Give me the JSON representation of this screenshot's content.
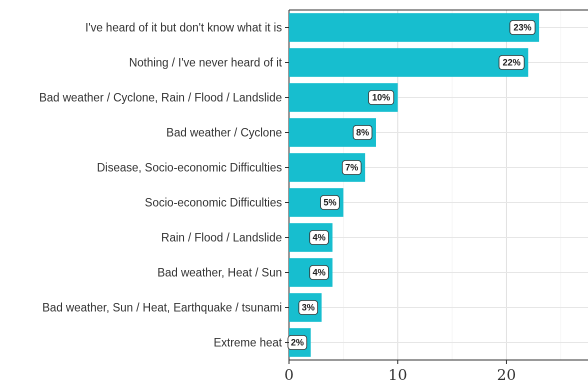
{
  "chart_data": {
    "type": "bar",
    "orientation": "horizontal",
    "categories": [
      "I've heard of it but don't know what it is",
      "Nothing / I've never heard of it",
      "Bad weather / Cyclone, Rain / Flood / Landslide",
      "Bad weather / Cyclone",
      "Disease, Socio-economic Difficulties",
      "Socio-economic Difficulties",
      "Rain / Flood / Landslide",
      "Bad weather, Heat / Sun",
      "Bad weather, Sun / Heat, Earthquake / tsunami",
      "Extreme heat"
    ],
    "values": [
      23,
      22,
      10,
      8,
      7,
      5,
      4,
      4,
      3,
      2
    ],
    "data_labels": [
      "23%",
      "22%",
      "10%",
      "8%",
      "7%",
      "5%",
      "4%",
      "4%",
      "3%",
      "2%"
    ],
    "x_ticks": [
      "0",
      "10",
      "20"
    ],
    "xlim": [
      0,
      27.5
    ],
    "title": "",
    "xlabel": "",
    "ylabel": "",
    "grid": true,
    "bar_color": "#17becf",
    "label_box_fill": "#ffffff",
    "label_box_stroke": "#333333"
  }
}
